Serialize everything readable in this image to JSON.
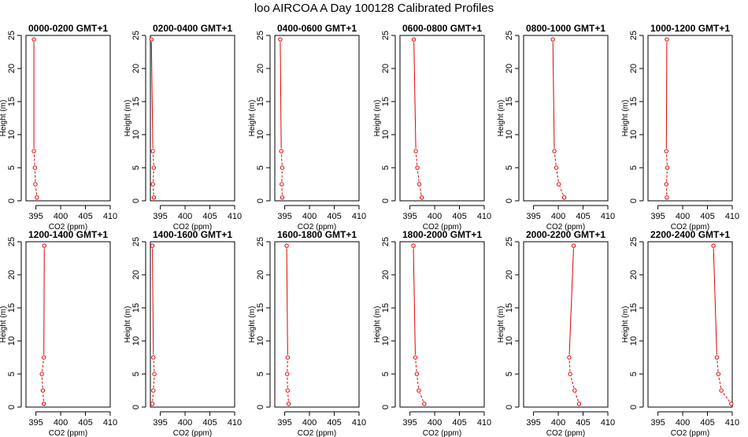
{
  "title": "loo AIRCOA A  Day 100128  Calibrated Profiles",
  "chart_data": [
    {
      "type": "line",
      "title": "0000-0200 GMT+1",
      "xlabel": "CO2 (ppm)",
      "ylabel": "Height (m)",
      "xlim": [
        393,
        410
      ],
      "ylim": [
        0,
        25
      ],
      "xticks": [
        395,
        400,
        405,
        410
      ],
      "yticks": [
        0,
        5,
        10,
        15,
        20,
        25
      ],
      "grid": false,
      "x": [
        395.2,
        394.9,
        394.8,
        394.6,
        394.6
      ],
      "y": [
        0.5,
        2.5,
        5,
        7.5,
        24.4
      ]
    },
    {
      "type": "line",
      "title": "0200-0400 GMT+1",
      "xlabel": "CO2 (ppm)",
      "ylabel": "Height (m)",
      "xlim": [
        393,
        410
      ],
      "ylim": [
        0,
        25
      ],
      "xticks": [
        395,
        400,
        405,
        410
      ],
      "yticks": [
        0,
        5,
        10,
        15,
        20,
        25
      ],
      "grid": false,
      "x": [
        393.7,
        393.5,
        393.7,
        393.5,
        393.2
      ],
      "y": [
        0.5,
        2.5,
        5,
        7.5,
        24.4
      ]
    },
    {
      "type": "line",
      "title": "0400-0600 GMT+1",
      "xlabel": "CO2 (ppm)",
      "ylabel": "Height (m)",
      "xlim": [
        393,
        410
      ],
      "ylim": [
        0,
        25
      ],
      "xticks": [
        395,
        400,
        405,
        410
      ],
      "yticks": [
        0,
        5,
        10,
        15,
        20,
        25
      ],
      "grid": false,
      "x": [
        394.5,
        394.4,
        394.5,
        394.3,
        394.1
      ],
      "y": [
        0.5,
        2.5,
        5,
        7.5,
        24.4
      ]
    },
    {
      "type": "line",
      "title": "0600-0800 GMT+1",
      "xlabel": "CO2 (ppm)",
      "ylabel": "Height (m)",
      "xlim": [
        393,
        410
      ],
      "ylim": [
        0,
        25
      ],
      "xticks": [
        395,
        400,
        405,
        410
      ],
      "yticks": [
        0,
        5,
        10,
        15,
        20,
        25
      ],
      "grid": false,
      "x": [
        397.4,
        396.9,
        396.5,
        396.2,
        395.8
      ],
      "y": [
        0.5,
        2.5,
        5,
        7.5,
        24.4
      ]
    },
    {
      "type": "line",
      "title": "0800-1000 GMT+1",
      "xlabel": "CO2 (ppm)",
      "ylabel": "Height (m)",
      "xlim": [
        393,
        410
      ],
      "ylim": [
        0,
        25
      ],
      "xticks": [
        395,
        400,
        405,
        410
      ],
      "yticks": [
        0,
        5,
        10,
        15,
        20,
        25
      ],
      "grid": false,
      "x": [
        401.2,
        400.1,
        399.6,
        399.2,
        398.9
      ],
      "y": [
        0.5,
        2.5,
        5,
        7.5,
        24.4
      ]
    },
    {
      "type": "line",
      "title": "1000-1200 GMT+1",
      "xlabel": "CO2 (ppm)",
      "ylabel": "Height (m)",
      "xlim": [
        393,
        410
      ],
      "ylim": [
        0,
        25
      ],
      "xticks": [
        395,
        400,
        405,
        410
      ],
      "yticks": [
        0,
        5,
        10,
        15,
        20,
        25
      ],
      "grid": false,
      "x": [
        396.8,
        396.7,
        396.9,
        396.7,
        396.8
      ],
      "y": [
        0.5,
        2.5,
        5,
        7.5,
        24.4
      ]
    },
    {
      "type": "line",
      "title": "1200-1400 GMT+1",
      "xlabel": "CO2 (ppm)",
      "ylabel": "Height (m)",
      "xlim": [
        393,
        410
      ],
      "ylim": [
        0,
        25
      ],
      "xticks": [
        395,
        400,
        405,
        410
      ],
      "yticks": [
        0,
        5,
        10,
        15,
        20,
        25
      ],
      "grid": false,
      "x": [
        396.6,
        396.4,
        396.2,
        396.6,
        396.7
      ],
      "y": [
        0.5,
        2.5,
        5,
        7.5,
        24.4
      ]
    },
    {
      "type": "line",
      "title": "1400-1600 GMT+1",
      "xlabel": "CO2 (ppm)",
      "ylabel": "Height (m)",
      "xlim": [
        393,
        410
      ],
      "ylim": [
        0,
        25
      ],
      "xticks": [
        395,
        400,
        405,
        410
      ],
      "yticks": [
        0,
        5,
        10,
        15,
        20,
        25
      ],
      "grid": false,
      "x": [
        393.4,
        393.6,
        393.8,
        393.6,
        393.4
      ],
      "y": [
        0.5,
        2.5,
        5,
        7.5,
        24.4
      ]
    },
    {
      "type": "line",
      "title": "1600-1800 GMT+1",
      "xlabel": "CO2 (ppm)",
      "ylabel": "Height (m)",
      "xlim": [
        393,
        410
      ],
      "ylim": [
        0,
        25
      ],
      "xticks": [
        395,
        400,
        405,
        410
      ],
      "yticks": [
        0,
        5,
        10,
        15,
        20,
        25
      ],
      "grid": false,
      "x": [
        395.8,
        395.6,
        395.5,
        395.6,
        395.4
      ],
      "y": [
        0.5,
        2.5,
        5,
        7.5,
        24.4
      ]
    },
    {
      "type": "line",
      "title": "1800-2000 GMT+1",
      "xlabel": "CO2 (ppm)",
      "ylabel": "Height (m)",
      "xlim": [
        393,
        410
      ],
      "ylim": [
        0,
        25
      ],
      "xticks": [
        395,
        400,
        405,
        410
      ],
      "yticks": [
        0,
        5,
        10,
        15,
        20,
        25
      ],
      "grid": false,
      "x": [
        397.9,
        396.8,
        396.4,
        396.1,
        395.7
      ],
      "y": [
        0.5,
        2.5,
        5,
        7.5,
        24.4
      ]
    },
    {
      "type": "line",
      "title": "2000-2200 GMT+1",
      "xlabel": "CO2 (ppm)",
      "ylabel": "Height (m)",
      "xlim": [
        393,
        410
      ],
      "ylim": [
        0,
        25
      ],
      "xticks": [
        395,
        400,
        405,
        410
      ],
      "yticks": [
        0,
        5,
        10,
        15,
        20,
        25
      ],
      "grid": false,
      "x": [
        404.2,
        403.3,
        402.4,
        402.2,
        403.1
      ],
      "y": [
        0.5,
        2.5,
        5,
        7.5,
        24.4
      ]
    },
    {
      "type": "line",
      "title": "2200-2400 GMT+1",
      "xlabel": "CO2 (ppm)",
      "ylabel": "Height (m)",
      "xlim": [
        393,
        410
      ],
      "ylim": [
        0,
        25
      ],
      "xticks": [
        395,
        400,
        405,
        410
      ],
      "yticks": [
        0,
        5,
        10,
        15,
        20,
        25
      ],
      "grid": false,
      "x": [
        409.8,
        407.8,
        407.2,
        406.9,
        406.2
      ],
      "y": [
        0.5,
        2.5,
        5,
        7.5,
        24.4
      ]
    }
  ],
  "colors": {
    "series": "#e00000",
    "axis": "#000000"
  }
}
